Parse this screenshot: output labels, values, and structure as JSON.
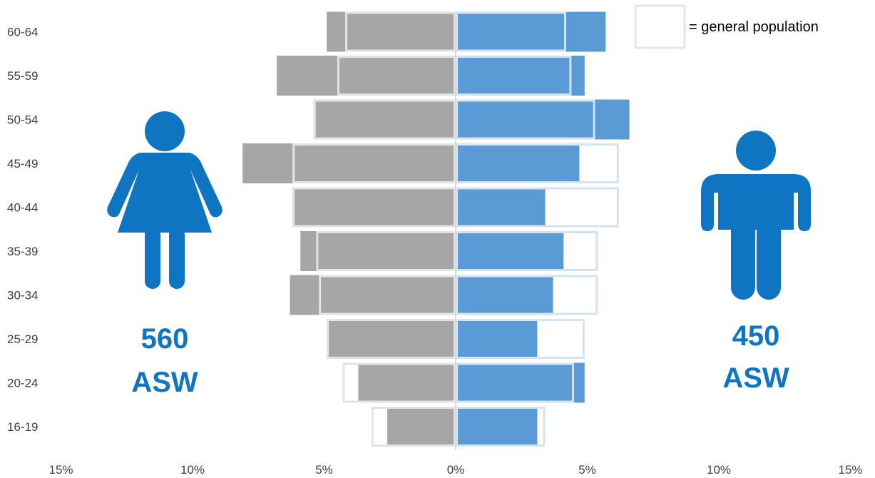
{
  "chart_data": {
    "type": "bar",
    "orientation": "horizontal",
    "layout": "population-pyramid",
    "categories": [
      "16-19",
      "20-24",
      "25-29",
      "30-34",
      "35-39",
      "40-44",
      "45-49",
      "50-54",
      "55-59",
      "60-64"
    ],
    "series": [
      {
        "side": "left",
        "style": "filled",
        "color": "#a6a6a6",
        "values": [
          2.6,
          3.7,
          4.9,
          6.3,
          5.9,
          6.2,
          8.1,
          5.4,
          6.8,
          4.9
        ]
      },
      {
        "side": "left",
        "style": "outline",
        "color": "#e3e3e3",
        "values": [
          3.2,
          4.3,
          4.9,
          5.2,
          5.3,
          6.2,
          6.2,
          5.4,
          4.5,
          4.2
        ]
      },
      {
        "side": "right",
        "style": "filled",
        "color": "#5b9bd5",
        "values": [
          3.1,
          4.9,
          3.1,
          3.7,
          4.1,
          3.4,
          4.7,
          6.6,
          4.9,
          5.7
        ]
      },
      {
        "side": "right",
        "style": "outline",
        "color": "#d4e3f1",
        "values": [
          3.4,
          4.5,
          4.9,
          5.4,
          5.4,
          6.2,
          6.2,
          5.3,
          4.4,
          4.2
        ]
      }
    ],
    "xticks": [
      "15%",
      "10%",
      "5%",
      "0%",
      "5%",
      "10%",
      "15%"
    ],
    "xlim": [
      -15,
      15
    ],
    "legend": {
      "label": "= general population",
      "placement": "top-right"
    },
    "annotations": {
      "left": {
        "count": "560",
        "label": "ASW",
        "icon": "female-figure-icon"
      },
      "right": {
        "count": "450",
        "label": "ASW",
        "icon": "male-figure-icon"
      }
    },
    "colors": {
      "accent": "#0f75c2"
    }
  }
}
